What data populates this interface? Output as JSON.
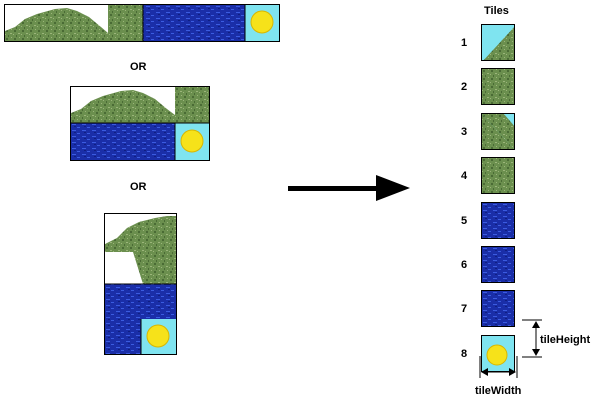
{
  "labels": {
    "or_1": "OR",
    "or_2": "OR",
    "tiles_heading": "Tiles",
    "tile_height": "tileHeight",
    "tile_width": "tileWidth"
  },
  "tiles": [
    {
      "number": "1",
      "kind": "slope-right"
    },
    {
      "number": "2",
      "kind": "grass"
    },
    {
      "number": "3",
      "kind": "slope-left"
    },
    {
      "number": "4",
      "kind": "grass"
    },
    {
      "number": "5",
      "kind": "water"
    },
    {
      "number": "6",
      "kind": "water"
    },
    {
      "number": "7",
      "kind": "water"
    },
    {
      "number": "8",
      "kind": "sun"
    }
  ],
  "colors": {
    "grass": "#6b8f4e",
    "grass_dark": "#4a6b35",
    "grass_light": "#9bb57a",
    "water": "#1a2ea8",
    "water_light": "#3b5ce0",
    "sky": "#7fe4f0",
    "sun": "#f6e21a",
    "sun_edge": "#d8b600"
  }
}
